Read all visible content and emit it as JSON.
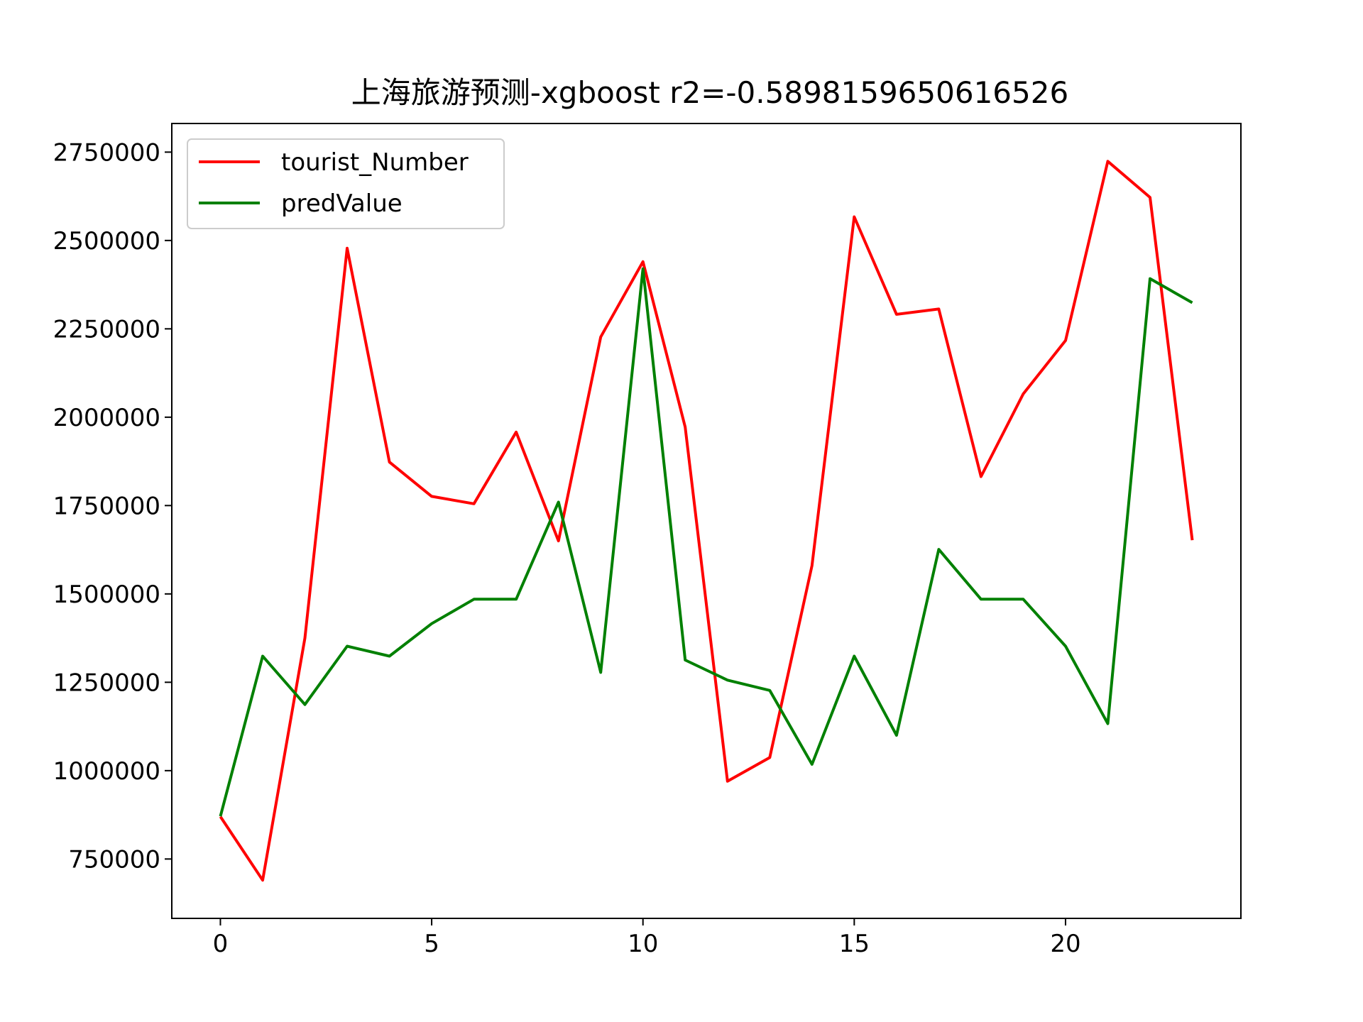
{
  "chart_data": {
    "type": "line",
    "title": "上海旅游预测-xgboost r2=-0.5898159650616526",
    "xlabel": "",
    "ylabel": "",
    "xlim": [
      -1.15,
      24.15
    ],
    "ylim": [
      582000,
      2831000
    ],
    "x_ticks": [
      0,
      5,
      10,
      15,
      20
    ],
    "y_ticks": [
      750000,
      1000000,
      1250000,
      1500000,
      1750000,
      2000000,
      2250000,
      2500000,
      2750000
    ],
    "grid": false,
    "legend_position": "top-left",
    "x": [
      0,
      1,
      2,
      3,
      4,
      5,
      6,
      7,
      8,
      9,
      10,
      11,
      12,
      13,
      14,
      15,
      16,
      17,
      18,
      19,
      20,
      21,
      22,
      23
    ],
    "series": [
      {
        "name": "tourist_Number",
        "color": "#ff0000",
        "values": [
          870000,
          690000,
          1375000,
          2478000,
          1873000,
          1776000,
          1755000,
          1958000,
          1650000,
          2227000,
          2440000,
          1972000,
          970000,
          1037000,
          1580000,
          2567000,
          2291000,
          2306000,
          1832000,
          2066000,
          2217000,
          2724000,
          2622000,
          1652000
        ]
      },
      {
        "name": "predValue",
        "color": "#008000",
        "values": [
          871000,
          1324000,
          1187000,
          1352000,
          1324000,
          1416000,
          1485000,
          1485000,
          1760000,
          1278000,
          2420000,
          1313000,
          1256000,
          1227000,
          1018000,
          1324000,
          1100000,
          1626000,
          1485000,
          1485000,
          1352000,
          1133000,
          2392000,
          2324000
        ]
      }
    ]
  }
}
